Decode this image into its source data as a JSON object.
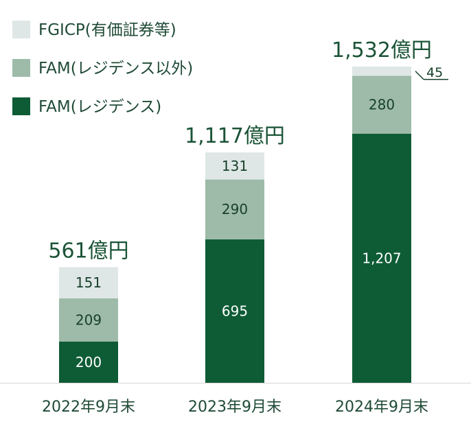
{
  "chart_data": {
    "type": "bar",
    "stacked": true,
    "categories": [
      "2022年9月末",
      "2023年9月末",
      "2024年9月末"
    ],
    "series": [
      {
        "name": "FAM(レジデンス)",
        "color": "#0e5c36",
        "label_color": "#ffffff",
        "values": [
          200,
          695,
          1207
        ],
        "labels": [
          "200",
          "695",
          "1,207"
        ]
      },
      {
        "name": "FAM(レジデンス以外)",
        "color": "#9dbba8",
        "label_color": "#17402b",
        "values": [
          209,
          290,
          280
        ],
        "labels": [
          "209",
          "290",
          "280"
        ]
      },
      {
        "name": "FGICP(有価証券等)",
        "color": "#dfe7e6",
        "label_color": "#17402b",
        "values": [
          151,
          131,
          45
        ],
        "labels": [
          "151",
          "131",
          "45"
        ]
      }
    ],
    "totals": [
      "561億円",
      "1,117億円",
      "1,532億円"
    ],
    "legend_position": "top-left",
    "grid": false,
    "ylim": [
      0,
      1532
    ]
  }
}
